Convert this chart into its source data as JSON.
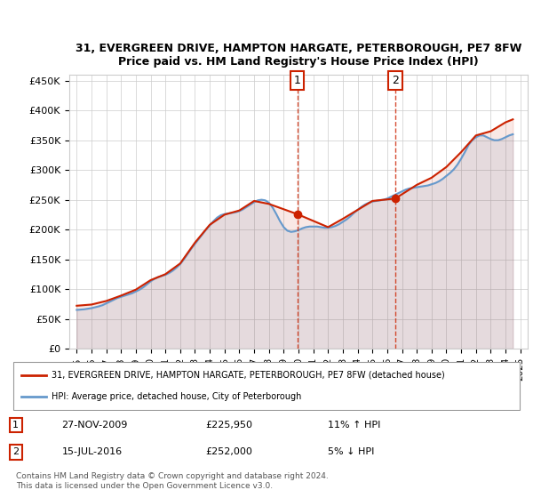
{
  "title": "31, EVERGREEN DRIVE, HAMPTON HARGATE, PETERBOROUGH, PE7 8FW",
  "subtitle": "Price paid vs. HM Land Registry's House Price Index (HPI)",
  "ylabel_ticks": [
    "£0",
    "£50K",
    "£100K",
    "£150K",
    "£200K",
    "£250K",
    "£300K",
    "£350K",
    "£400K",
    "£450K"
  ],
  "ytick_values": [
    0,
    50000,
    100000,
    150000,
    200000,
    250000,
    300000,
    350000,
    400000,
    450000
  ],
  "ylim": [
    0,
    460000
  ],
  "xlim_start": 1994.5,
  "xlim_end": 2025.5,
  "hpi_color": "#6699cc",
  "property_color": "#cc2200",
  "marker_color": "#cc2200",
  "purchase1_year": 2009.91,
  "purchase1_price": 225950,
  "purchase1_label": "1",
  "purchase1_date": "27-NOV-2009",
  "purchase1_hpi_pct": "11% ↑ HPI",
  "purchase2_year": 2016.54,
  "purchase2_price": 252000,
  "purchase2_label": "2",
  "purchase2_date": "15-JUL-2016",
  "purchase2_hpi_pct": "5% ↓ HPI",
  "legend_line1": "31, EVERGREEN DRIVE, HAMPTON HARGATE, PETERBOROUGH, PE7 8FW (detached house)",
  "legend_line2": "HPI: Average price, detached house, City of Peterborough",
  "footer": "Contains HM Land Registry data © Crown copyright and database right 2024.\nThis data is licensed under the Open Government Licence v3.0.",
  "hpi_data_x": [
    1995,
    1995.25,
    1995.5,
    1995.75,
    1996,
    1996.25,
    1996.5,
    1996.75,
    1997,
    1997.25,
    1997.5,
    1997.75,
    1998,
    1998.25,
    1998.5,
    1998.75,
    1999,
    1999.25,
    1999.5,
    1999.75,
    2000,
    2000.25,
    2000.5,
    2000.75,
    2001,
    2001.25,
    2001.5,
    2001.75,
    2002,
    2002.25,
    2002.5,
    2002.75,
    2003,
    2003.25,
    2003.5,
    2003.75,
    2004,
    2004.25,
    2004.5,
    2004.75,
    2005,
    2005.25,
    2005.5,
    2005.75,
    2006,
    2006.25,
    2006.5,
    2006.75,
    2007,
    2007.25,
    2007.5,
    2007.75,
    2008,
    2008.25,
    2008.5,
    2008.75,
    2009,
    2009.25,
    2009.5,
    2009.75,
    2010,
    2010.25,
    2010.5,
    2010.75,
    2011,
    2011.25,
    2011.5,
    2011.75,
    2012,
    2012.25,
    2012.5,
    2012.75,
    2013,
    2013.25,
    2013.5,
    2013.75,
    2014,
    2014.25,
    2014.5,
    2014.75,
    2015,
    2015.25,
    2015.5,
    2015.75,
    2016,
    2016.25,
    2016.5,
    2016.75,
    2017,
    2017.25,
    2017.5,
    2017.75,
    2018,
    2018.25,
    2018.5,
    2018.75,
    2019,
    2019.25,
    2019.5,
    2019.75,
    2020,
    2020.25,
    2020.5,
    2020.75,
    2021,
    2021.25,
    2021.5,
    2021.75,
    2022,
    2022.25,
    2022.5,
    2022.75,
    2023,
    2023.25,
    2023.5,
    2023.75,
    2024,
    2024.25,
    2024.5
  ],
  "hpi_data_y": [
    65000,
    65500,
    66000,
    67000,
    68000,
    69500,
    71000,
    73000,
    76000,
    79000,
    82000,
    85000,
    87000,
    89000,
    91000,
    93000,
    96000,
    99000,
    103000,
    108000,
    113000,
    117000,
    120000,
    122000,
    124000,
    127000,
    131000,
    136000,
    142000,
    150000,
    159000,
    168000,
    176000,
    184000,
    192000,
    200000,
    207000,
    214000,
    220000,
    224000,
    226000,
    227000,
    228000,
    229000,
    231000,
    234000,
    238000,
    242000,
    246000,
    249000,
    250000,
    249000,
    245000,
    237000,
    226000,
    214000,
    204000,
    198000,
    196000,
    197000,
    199000,
    202000,
    204000,
    205000,
    205000,
    205000,
    204000,
    203000,
    203000,
    204000,
    206000,
    209000,
    213000,
    217000,
    222000,
    228000,
    233000,
    238000,
    242000,
    245000,
    247000,
    248000,
    249000,
    250000,
    252000,
    255000,
    258000,
    261000,
    264000,
    267000,
    269000,
    270000,
    271000,
    272000,
    273000,
    274000,
    276000,
    278000,
    281000,
    285000,
    290000,
    295000,
    301000,
    309000,
    319000,
    330000,
    342000,
    350000,
    355000,
    358000,
    358000,
    355000,
    352000,
    350000,
    350000,
    352000,
    355000,
    358000,
    360000
  ],
  "property_data_x": [
    1995,
    1995.5,
    1996,
    1997,
    1998,
    1999,
    2000,
    2001,
    2002,
    2003,
    2004,
    2005,
    2006,
    2007,
    2008,
    2009.91,
    2012,
    2013,
    2014,
    2015,
    2016.54,
    2018,
    2019,
    2020,
    2021,
    2022,
    2023,
    2024,
    2024.5
  ],
  "property_data_y": [
    72000,
    73000,
    74000,
    80000,
    89000,
    99000,
    115000,
    125000,
    143000,
    178000,
    208000,
    225000,
    232000,
    248000,
    243000,
    225950,
    204000,
    218000,
    233000,
    248000,
    252000,
    275000,
    287000,
    305000,
    330000,
    358000,
    365000,
    380000,
    385000
  ]
}
